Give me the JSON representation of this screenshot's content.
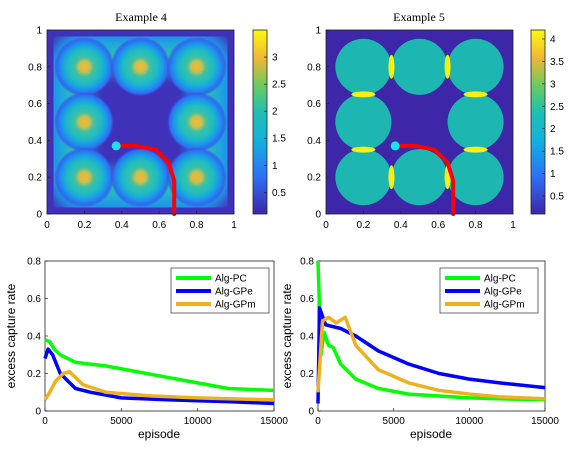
{
  "chart_data": [
    {
      "type": "heatmap",
      "title": "Example 4",
      "xlim": [
        0,
        1
      ],
      "ylim": [
        0,
        1
      ],
      "xticks": [
        0,
        0.2,
        0.4,
        0.6,
        0.8,
        1
      ],
      "yticks": [
        0,
        0.2,
        0.4,
        0.6,
        0.8,
        1
      ],
      "colorbar": {
        "ticks": [
          0.5,
          1,
          1.5,
          2,
          2.5,
          3
        ],
        "range": [
          0.1,
          3.5
        ]
      },
      "hotspots": [
        {
          "x": 0.2,
          "y": 0.8
        },
        {
          "x": 0.5,
          "y": 0.8
        },
        {
          "x": 0.8,
          "y": 0.8
        },
        {
          "x": 0.2,
          "y": 0.5
        },
        {
          "x": 0.8,
          "y": 0.5
        },
        {
          "x": 0.2,
          "y": 0.2
        },
        {
          "x": 0.5,
          "y": 0.2
        },
        {
          "x": 0.8,
          "y": 0.2
        }
      ],
      "trajectory": [
        [
          0.38,
          0.37
        ],
        [
          0.48,
          0.37
        ],
        [
          0.58,
          0.35
        ],
        [
          0.65,
          0.28
        ],
        [
          0.68,
          0.18
        ],
        [
          0.68,
          0.0
        ]
      ],
      "agent": {
        "x": 0.37,
        "y": 0.37
      }
    },
    {
      "type": "heatmap",
      "title": "Example 5",
      "xlim": [
        0,
        1
      ],
      "ylim": [
        0,
        1
      ],
      "xticks": [
        0,
        0.2,
        0.4,
        0.6,
        0.8,
        1
      ],
      "yticks": [
        0,
        0.2,
        0.4,
        0.6,
        0.8,
        1
      ],
      "colorbar": {
        "ticks": [
          0.5,
          1,
          1.5,
          2,
          2.5,
          3,
          3.5,
          4
        ],
        "range": [
          0.1,
          4.2
        ]
      },
      "regions": [
        {
          "x": 0.2,
          "y": 0.8,
          "r": 0.15
        },
        {
          "x": 0.5,
          "y": 0.8,
          "r": 0.15
        },
        {
          "x": 0.8,
          "y": 0.8,
          "r": 0.15
        },
        {
          "x": 0.2,
          "y": 0.5,
          "r": 0.15
        },
        {
          "x": 0.8,
          "y": 0.5,
          "r": 0.15
        },
        {
          "x": 0.2,
          "y": 0.2,
          "r": 0.15
        },
        {
          "x": 0.5,
          "y": 0.2,
          "r": 0.15
        },
        {
          "x": 0.8,
          "y": 0.2,
          "r": 0.15
        }
      ],
      "trajectory": [
        [
          0.38,
          0.37
        ],
        [
          0.48,
          0.37
        ],
        [
          0.58,
          0.35
        ],
        [
          0.65,
          0.28
        ],
        [
          0.68,
          0.18
        ],
        [
          0.68,
          0.0
        ]
      ],
      "agent": {
        "x": 0.37,
        "y": 0.37
      }
    },
    {
      "type": "line",
      "xlabel": "episode",
      "ylabel": "excess capture rate",
      "xlim": [
        0,
        15000
      ],
      "ylim": [
        0,
        0.8
      ],
      "xticks": [
        0,
        5000,
        10000,
        15000
      ],
      "yticks": [
        0,
        0.2,
        0.4,
        0.6,
        0.8
      ],
      "legend": "top-right",
      "series": [
        {
          "name": "Alg-PC",
          "color": "#00ff00",
          "points": [
            [
              0,
              0.38
            ],
            [
              300,
              0.37
            ],
            [
              600,
              0.33
            ],
            [
              1000,
              0.3
            ],
            [
              2000,
              0.26
            ],
            [
              4000,
              0.24
            ],
            [
              6000,
              0.21
            ],
            [
              8000,
              0.18
            ],
            [
              10000,
              0.15
            ],
            [
              12000,
              0.12
            ],
            [
              15000,
              0.11
            ]
          ]
        },
        {
          "name": "Alg-GPe",
          "color": "#0000ff",
          "points": [
            [
              0,
              0.28
            ],
            [
              200,
              0.33
            ],
            [
              500,
              0.3
            ],
            [
              1000,
              0.2
            ],
            [
              2000,
              0.12
            ],
            [
              3000,
              0.1
            ],
            [
              5000,
              0.07
            ],
            [
              8000,
              0.06
            ],
            [
              10000,
              0.055
            ],
            [
              12000,
              0.05
            ],
            [
              15000,
              0.04
            ]
          ]
        },
        {
          "name": "Alg-GPm",
          "color": "#edb120",
          "points": [
            [
              0,
              0.06
            ],
            [
              300,
              0.1
            ],
            [
              700,
              0.16
            ],
            [
              1200,
              0.2
            ],
            [
              1600,
              0.21
            ],
            [
              2500,
              0.14
            ],
            [
              4000,
              0.1
            ],
            [
              7000,
              0.08
            ],
            [
              10000,
              0.07
            ],
            [
              12000,
              0.065
            ],
            [
              15000,
              0.06
            ]
          ]
        }
      ]
    },
    {
      "type": "line",
      "xlabel": "episode",
      "ylabel": "excess capture rate",
      "xlim": [
        0,
        15000
      ],
      "ylim": [
        0,
        0.8
      ],
      "xticks": [
        0,
        5000,
        10000,
        15000
      ],
      "yticks": [
        0,
        0.2,
        0.4,
        0.6,
        0.8
      ],
      "legend": "top-right",
      "series": [
        {
          "name": "Alg-PC",
          "color": "#00ff00",
          "points": [
            [
              0,
              0.8
            ],
            [
              200,
              0.3
            ],
            [
              400,
              0.42
            ],
            [
              700,
              0.35
            ],
            [
              1000,
              0.34
            ],
            [
              1500,
              0.25
            ],
            [
              2500,
              0.17
            ],
            [
              4000,
              0.12
            ],
            [
              6000,
              0.09
            ],
            [
              8000,
              0.08
            ],
            [
              10000,
              0.07
            ],
            [
              12000,
              0.065
            ],
            [
              15000,
              0.06
            ]
          ]
        },
        {
          "name": "Alg-GPe",
          "color": "#0000ff",
          "points": [
            [
              0,
              0.04
            ],
            [
              100,
              0.55
            ],
            [
              500,
              0.46
            ],
            [
              1500,
              0.44
            ],
            [
              2500,
              0.4
            ],
            [
              4000,
              0.32
            ],
            [
              6000,
              0.25
            ],
            [
              8000,
              0.2
            ],
            [
              10000,
              0.17
            ],
            [
              12000,
              0.15
            ],
            [
              15000,
              0.125
            ]
          ]
        },
        {
          "name": "Alg-GPm",
          "color": "#edb120",
          "points": [
            [
              0,
              0.1
            ],
            [
              300,
              0.48
            ],
            [
              700,
              0.5
            ],
            [
              1200,
              0.47
            ],
            [
              1800,
              0.5
            ],
            [
              2500,
              0.35
            ],
            [
              4000,
              0.22
            ],
            [
              6000,
              0.15
            ],
            [
              8000,
              0.11
            ],
            [
              10000,
              0.09
            ],
            [
              12000,
              0.075
            ],
            [
              15000,
              0.065
            ]
          ]
        }
      ]
    }
  ]
}
